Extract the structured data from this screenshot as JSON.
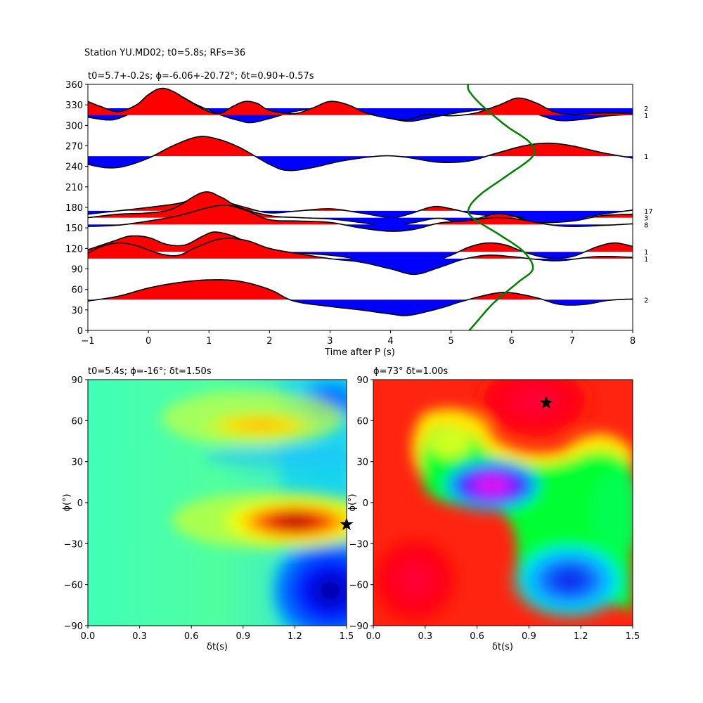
{
  "suptitle": "Station YU.MD02; t0=5.8s; RFs=36",
  "chart_data": [
    {
      "type": "line",
      "panel": "receiver-function-stack",
      "title": "t0=5.7+-0.2s; ϕ=-6.06+-20.72°; δt=0.90+-0.57s",
      "xlabel": "Time after P (s)",
      "ylabel": "",
      "xlim": [
        -1,
        8
      ],
      "ylim": [
        0,
        360
      ],
      "xticks": [
        -1,
        0,
        1,
        2,
        3,
        4,
        5,
        6,
        7,
        8
      ],
      "yticks": [
        0,
        30,
        60,
        90,
        120,
        150,
        180,
        210,
        240,
        270,
        300,
        330,
        360
      ],
      "fill_positive_color": "#ff0000",
      "fill_negative_color": "#0000ff",
      "traces": [
        {
          "baseline": 325,
          "count": "2",
          "points": [
            [
              -1,
              312
            ],
            [
              -0.7,
              308
            ],
            [
              -0.5,
              310
            ],
            [
              -0.2,
              322
            ],
            [
              0,
              337
            ],
            [
              0.3,
              345
            ],
            [
              0.5,
              344
            ],
            [
              0.8,
              330
            ],
            [
              1.2,
              315
            ],
            [
              1.5,
              307
            ],
            [
              1.7,
              304
            ],
            [
              2.0,
              310
            ],
            [
              2.4,
              320
            ],
            [
              2.8,
              325
            ],
            [
              3.2,
              324
            ],
            [
              3.6,
              318
            ],
            [
              4.0,
              310
            ],
            [
              4.3,
              306
            ],
            [
              4.6,
              310
            ],
            [
              5.0,
              317
            ],
            [
              5.4,
              322
            ],
            [
              5.8,
              326
            ],
            [
              6.0,
              328
            ],
            [
              6.2,
              324
            ],
            [
              6.5,
              314
            ],
            [
              6.8,
              307
            ],
            [
              7.2,
              309
            ],
            [
              7.6,
              314
            ],
            [
              8,
              316
            ]
          ]
        },
        {
          "baseline": 315,
          "count": "1",
          "points": [
            [
              -1,
              335
            ],
            [
              -0.8,
              328
            ],
            [
              -0.5,
              320
            ],
            [
              -0.2,
              330
            ],
            [
              0,
              345
            ],
            [
              0.2,
              354
            ],
            [
              0.4,
              350
            ],
            [
              0.7,
              334
            ],
            [
              1.0,
              320
            ],
            [
              1.2,
              318
            ],
            [
              1.4,
              328
            ],
            [
              1.6,
              335
            ],
            [
              1.8,
              332
            ],
            [
              2.0,
              322
            ],
            [
              2.4,
              317
            ],
            [
              2.7,
              325
            ],
            [
              3.0,
              335
            ],
            [
              3.3,
              330
            ],
            [
              3.6,
              318
            ],
            [
              4.0,
              310
            ],
            [
              4.3,
              309
            ],
            [
              4.6,
              316
            ],
            [
              5.0,
              314
            ],
            [
              5.4,
              318
            ],
            [
              5.8,
              330
            ],
            [
              6.1,
              340
            ],
            [
              6.4,
              333
            ],
            [
              6.7,
              320
            ],
            [
              7.0,
              316
            ],
            [
              7.4,
              318
            ],
            [
              7.8,
              318
            ],
            [
              8,
              317
            ]
          ]
        },
        {
          "baseline": 255,
          "count": "1",
          "points": [
            [
              -1,
              243
            ],
            [
              -0.7,
              238
            ],
            [
              -0.4,
              240
            ],
            [
              0,
              252
            ],
            [
              0.4,
              270
            ],
            [
              0.8,
              283
            ],
            [
              1.1,
              281
            ],
            [
              1.5,
              268
            ],
            [
              2.0,
              243
            ],
            [
              2.3,
              234
            ],
            [
              2.7,
              238
            ],
            [
              3.2,
              248
            ],
            [
              3.8,
              255
            ],
            [
              4.2,
              254
            ],
            [
              4.8,
              246
            ],
            [
              5.3,
              248
            ],
            [
              5.7,
              258
            ],
            [
              6.2,
              270
            ],
            [
              6.6,
              274
            ],
            [
              7.0,
              270
            ],
            [
              7.5,
              260
            ],
            [
              8,
              252
            ]
          ]
        },
        {
          "baseline": 175,
          "count": "17",
          "points": [
            [
              -1,
              170
            ],
            [
              -0.5,
              175
            ],
            [
              0,
              180
            ],
            [
              0.5,
              186
            ],
            [
              0.9,
              195
            ],
            [
              1.2,
              190
            ],
            [
              1.6,
              180
            ],
            [
              2.0,
              172
            ],
            [
              2.5,
              175
            ],
            [
              3.0,
              178
            ],
            [
              3.5,
              172
            ],
            [
              4.0,
              165
            ],
            [
              4.3,
              170
            ],
            [
              4.7,
              181
            ],
            [
              5.0,
              178
            ],
            [
              5.4,
              170
            ],
            [
              5.8,
              168
            ],
            [
              6.2,
              165
            ],
            [
              6.6,
              160
            ],
            [
              7.0,
              162
            ],
            [
              7.5,
              170
            ],
            [
              8,
              176
            ]
          ]
        },
        {
          "baseline": 165,
          "count": "3",
          "points": [
            [
              -1,
              165
            ],
            [
              -0.5,
              170
            ],
            [
              0,
              172
            ],
            [
              0.4,
              178
            ],
            [
              0.9,
              202
            ],
            [
              1.2,
              195
            ],
            [
              1.5,
              180
            ],
            [
              2.0,
              168
            ],
            [
              2.5,
              165
            ],
            [
              3.0,
              163
            ],
            [
              3.5,
              158
            ],
            [
              4.0,
              152
            ],
            [
              4.4,
              158
            ],
            [
              4.8,
              164
            ],
            [
              5.2,
              158
            ],
            [
              5.7,
              170
            ],
            [
              6.0,
              168
            ],
            [
              6.4,
              158
            ],
            [
              7.0,
              160
            ],
            [
              7.5,
              168
            ],
            [
              8,
              170
            ]
          ]
        },
        {
          "baseline": 155,
          "count": "8",
          "points": [
            [
              -1,
              152
            ],
            [
              -0.5,
              154
            ],
            [
              0,
              160
            ],
            [
              0.5,
              168
            ],
            [
              1.0,
              180
            ],
            [
              1.3,
              183
            ],
            [
              1.6,
              176
            ],
            [
              2.0,
              162
            ],
            [
              2.5,
              160
            ],
            [
              3.0,
              158
            ],
            [
              3.5,
              150
            ],
            [
              4.0,
              145
            ],
            [
              4.4,
              148
            ],
            [
              4.8,
              157
            ],
            [
              5.2,
              160
            ],
            [
              5.7,
              165
            ],
            [
              6.1,
              163
            ],
            [
              6.6,
              155
            ],
            [
              7.0,
              152
            ],
            [
              7.6,
              154
            ],
            [
              8,
              156
            ]
          ]
        },
        {
          "baseline": 115,
          "count": "1",
          "points": [
            [
              -1,
              118
            ],
            [
              -0.6,
              130
            ],
            [
              -0.3,
              138
            ],
            [
              0,
              136
            ],
            [
              0.3,
              126
            ],
            [
              0.6,
              125
            ],
            [
              0.9,
              138
            ],
            [
              1.1,
              144
            ],
            [
              1.4,
              138
            ],
            [
              1.8,
              122
            ],
            [
              2.2,
              115
            ],
            [
              2.7,
              112
            ],
            [
              3.2,
              108
            ],
            [
              3.8,
              98
            ],
            [
              4.2,
              92
            ],
            [
              4.6,
              97
            ],
            [
              5.0,
              110
            ],
            [
              5.3,
              122
            ],
            [
              5.6,
              128
            ],
            [
              5.9,
              125
            ],
            [
              6.2,
              115
            ],
            [
              6.6,
              106
            ],
            [
              7.0,
              108
            ],
            [
              7.4,
              122
            ],
            [
              7.7,
              128
            ],
            [
              8,
              123
            ]
          ]
        },
        {
          "baseline": 105,
          "count": "1",
          "points": [
            [
              -1,
              113
            ],
            [
              -0.8,
              122
            ],
            [
              -0.5,
              128
            ],
            [
              -0.2,
              124
            ],
            [
              0.2,
              112
            ],
            [
              0.5,
              110
            ],
            [
              0.8,
              122
            ],
            [
              1.2,
              134
            ],
            [
              1.6,
              132
            ],
            [
              2.0,
              120
            ],
            [
              2.5,
              112
            ],
            [
              3.0,
              105
            ],
            [
              3.5,
              100
            ],
            [
              4.0,
              90
            ],
            [
              4.4,
              82
            ],
            [
              4.8,
              92
            ],
            [
              5.2,
              104
            ],
            [
              5.6,
              110
            ],
            [
              6.0,
              108
            ],
            [
              6.4,
              104
            ],
            [
              6.8,
              102
            ],
            [
              7.4,
              108
            ],
            [
              8,
              107
            ]
          ]
        },
        {
          "baseline": 45,
          "count": "2",
          "points": [
            [
              -1,
              43
            ],
            [
              -0.5,
              50
            ],
            [
              0,
              62
            ],
            [
              0.5,
              70
            ],
            [
              1.0,
              74
            ],
            [
              1.5,
              72
            ],
            [
              2.0,
              60
            ],
            [
              2.4,
              43
            ],
            [
              3.0,
              35
            ],
            [
              3.5,
              30
            ],
            [
              4.0,
              24
            ],
            [
              4.3,
              22
            ],
            [
              4.8,
              32
            ],
            [
              5.2,
              43
            ],
            [
              5.7,
              54
            ],
            [
              6.0,
              55
            ],
            [
              6.4,
              48
            ],
            [
              6.8,
              38
            ],
            [
              7.2,
              38
            ],
            [
              7.6,
              44
            ],
            [
              8,
              46
            ]
          ]
        }
      ],
      "green_curve": {
        "color": "#007f00",
        "points": [
          [
            5.3,
            0
          ],
          [
            5.4,
            10
          ],
          [
            5.7,
            40
          ],
          [
            6.1,
            70
          ],
          [
            6.35,
            90
          ],
          [
            6.2,
            115
          ],
          [
            5.8,
            140
          ],
          [
            5.35,
            165
          ],
          [
            5.3,
            180
          ],
          [
            5.5,
            200
          ],
          [
            5.9,
            225
          ],
          [
            6.35,
            255
          ],
          [
            6.3,
            275
          ],
          [
            5.9,
            300
          ],
          [
            5.5,
            330
          ],
          [
            5.3,
            350
          ],
          [
            5.28,
            360
          ]
        ]
      }
    },
    {
      "type": "heatmap",
      "panel": "energy-grid-left",
      "title": "t0=5.4s; ϕ=-16°; δt=1.50s",
      "xlabel": "δt(s)",
      "ylabel": "ϕ(°)",
      "xlim": [
        0,
        1.5
      ],
      "ylim": [
        -90,
        90
      ],
      "xticks": [
        "0.0",
        "0.3",
        "0.6",
        "0.9",
        "1.2",
        "1.5"
      ],
      "yticks": [
        "90",
        "60",
        "30",
        "0",
        "−30",
        "−60",
        "−90"
      ],
      "colormap": "jet",
      "star": {
        "dt": 1.5,
        "phi": -16
      }
    },
    {
      "type": "heatmap",
      "panel": "energy-grid-right",
      "title": "ϕ=73° δt=1.00s",
      "xlabel": "δt(s)",
      "ylabel": "ϕ(°)",
      "xlim": [
        0,
        1.5
      ],
      "ylim": [
        -90,
        90
      ],
      "xticks": [
        "0.0",
        "0.3",
        "0.6",
        "0.9",
        "1.2",
        "1.5"
      ],
      "yticks": [
        "90",
        "60",
        "30",
        "0",
        "−30",
        "−60",
        "−90"
      ],
      "colormap": "hsv",
      "star": {
        "dt": 1.0,
        "phi": 73
      }
    }
  ]
}
